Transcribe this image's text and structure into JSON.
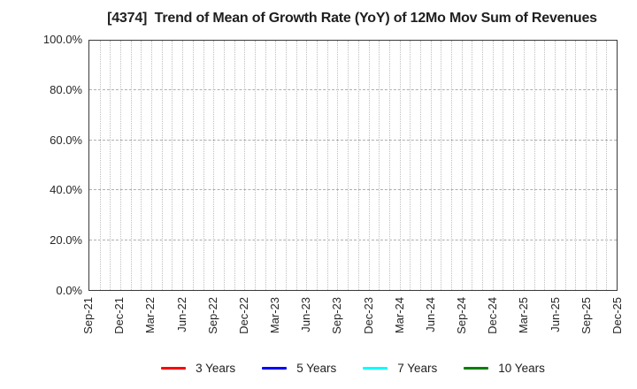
{
  "chart_data": {
    "type": "line",
    "title": "[4374]  Trend of Mean of Growth Rate (YoY) of 12Mo Mov Sum of Revenues",
    "xlabel": "",
    "ylabel": "",
    "ylim": [
      0,
      100
    ],
    "yticks": [
      0,
      20,
      40,
      60,
      80,
      100
    ],
    "y_tick_labels": [
      "0.0%",
      "20.0%",
      "40.0%",
      "60.0%",
      "80.0%",
      "100.0%"
    ],
    "x_tick_labels": [
      "Sep-21",
      "Dec-21",
      "Mar-22",
      "Jun-22",
      "Sep-22",
      "Dec-22",
      "Mar-23",
      "Jun-23",
      "Sep-23",
      "Dec-23",
      "Mar-24",
      "Jun-24",
      "Sep-24",
      "Dec-24",
      "Mar-25",
      "Jun-25",
      "Sep-25",
      "Dec-25"
    ],
    "x_minor_divisions_per_interval": 3,
    "grid": true,
    "grid_style": {
      "horizontal": "dashed",
      "vertical": "dotted"
    },
    "legend_position": "bottom-center",
    "series": [
      {
        "name": "3 Years",
        "color": "#ff0000",
        "values": []
      },
      {
        "name": "5 Years",
        "color": "#0000ff",
        "values": []
      },
      {
        "name": "7 Years",
        "color": "#00ffff",
        "values": []
      },
      {
        "name": "10 Years",
        "color": "#008000",
        "values": []
      }
    ]
  }
}
